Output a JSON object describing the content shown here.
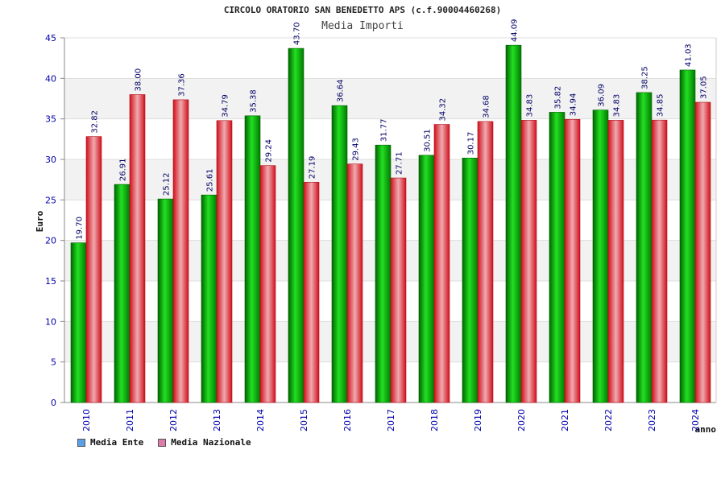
{
  "header": {
    "title": "CIRCOLO ORATORIO SAN BENEDETTO APS (c.f.90004460268)",
    "subtitle": "Media Importi"
  },
  "chart_data": {
    "type": "bar",
    "title": "CIRCOLO ORATORIO SAN BENEDETTO APS (c.f.90004460268)",
    "subtitle": "Media Importi",
    "xlabel": "anno",
    "ylabel": "Euro",
    "ylim": [
      0,
      45
    ],
    "yticks": [
      0,
      5,
      10,
      15,
      20,
      25,
      30,
      35,
      40,
      45
    ],
    "grid": true,
    "legend_position": "bottom-left",
    "categories": [
      "2010",
      "2011",
      "2012",
      "2013",
      "2014",
      "2015",
      "2016",
      "2017",
      "2018",
      "2019",
      "2020",
      "2021",
      "2022",
      "2023",
      "2024"
    ],
    "series": [
      {
        "name": "Media Ente",
        "color": "#00b000",
        "legend_color": "#5aa0e6",
        "values": [
          19.7,
          26.91,
          25.12,
          25.61,
          35.38,
          43.7,
          36.64,
          31.77,
          30.51,
          30.17,
          44.09,
          35.82,
          36.09,
          38.25,
          41.03
        ],
        "labels": [
          "19.70",
          "26.91",
          "25.12",
          "25.61",
          "35.38",
          "43.70",
          "36.64",
          "31.77",
          "30.51",
          "30.17",
          "44.09",
          "35.82",
          "36.09",
          "38.25",
          "41.03"
        ]
      },
      {
        "name": "Media Nazionale",
        "color": "#e0202a",
        "legend_color": "#e07aa8",
        "values": [
          32.82,
          38.0,
          37.36,
          34.79,
          29.24,
          27.19,
          29.43,
          27.71,
          34.32,
          34.68,
          34.83,
          34.94,
          34.83,
          34.85,
          37.05
        ],
        "labels": [
          "32.82",
          "38.00",
          "37.36",
          "34.79",
          "29.24",
          "27.19",
          "29.43",
          "27.71",
          "34.32",
          "34.68",
          "34.83",
          "34.94",
          "34.83",
          "34.85",
          "37.05"
        ]
      }
    ],
    "colors": {
      "axis_text": "#0000aa",
      "label_text": "#000066",
      "band": "#f2f2f2",
      "grid": "#dddddd"
    }
  }
}
